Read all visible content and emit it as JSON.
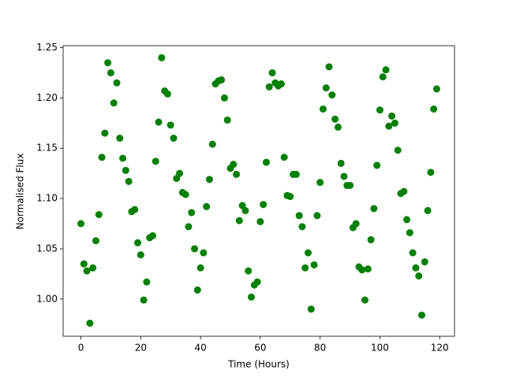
{
  "chart_data": {
    "type": "scatter",
    "x_label": "Time (Hours)",
    "y_label": "Normalised Flux",
    "color": "#008000",
    "x": [
      0,
      1,
      2,
      3,
      4,
      5,
      6,
      7,
      8,
      9,
      10,
      11,
      12,
      13,
      14,
      15,
      16,
      17,
      18,
      19,
      20,
      21,
      22,
      23,
      24,
      25,
      26,
      27,
      28,
      29,
      30,
      31,
      32,
      33,
      34,
      35,
      36,
      37,
      38,
      39,
      40,
      41,
      42,
      43,
      44,
      45,
      46,
      47,
      48,
      49,
      50,
      51,
      52,
      53,
      54,
      55,
      56,
      57,
      58,
      59,
      60,
      61,
      62,
      63,
      64,
      65,
      66,
      67,
      68,
      69,
      70,
      71,
      72,
      73,
      74,
      75,
      76,
      77,
      78,
      79,
      80,
      81,
      82,
      83,
      84,
      85,
      86,
      87,
      88,
      89,
      90,
      91,
      92,
      93,
      94,
      95,
      96,
      97,
      98,
      99,
      100,
      101,
      102,
      103,
      104,
      105,
      106,
      107,
      108,
      109,
      110,
      111,
      112,
      113,
      114,
      115,
      116,
      117,
      118,
      119
    ],
    "values": [
      1.075,
      1.035,
      1.028,
      0.976,
      1.031,
      1.058,
      1.084,
      1.141,
      1.165,
      1.235,
      1.225,
      1.195,
      1.215,
      1.16,
      1.14,
      1.128,
      1.117,
      1.087,
      1.089,
      1.056,
      1.044,
      0.999,
      1.017,
      1.061,
      1.063,
      1.137,
      1.176,
      1.24,
      1.207,
      1.204,
      1.173,
      1.16,
      1.12,
      1.125,
      1.106,
      1.104,
      1.072,
      1.086,
      1.05,
      1.009,
      1.031,
      1.046,
      1.092,
      1.119,
      1.154,
      1.214,
      1.217,
      1.218,
      1.2,
      1.178,
      1.13,
      1.134,
      1.124,
      1.078,
      1.093,
      1.088,
      1.028,
      1.002,
      1.014,
      1.017,
      1.077,
      1.094,
      1.136,
      1.211,
      1.225,
      1.215,
      1.212,
      1.214,
      1.141,
      1.103,
      1.102,
      1.124,
      1.124,
      1.083,
      1.072,
      1.031,
      1.046,
      0.99,
      1.034,
      1.083,
      1.116,
      1.189,
      1.21,
      1.231,
      1.203,
      1.179,
      1.171,
      1.135,
      1.122,
      1.113,
      1.113,
      1.071,
      1.075,
      1.032,
      1.029,
      0.999,
      1.03,
      1.059,
      1.09,
      1.133,
      1.188,
      1.221,
      1.228,
      1.172,
      1.182,
      1.175,
      1.148,
      1.105,
      1.107,
      1.079,
      1.066,
      1.046,
      1.031,
      1.023,
      0.984,
      1.037,
      1.088,
      1.126,
      1.189,
      1.209
    ],
    "xlim": [
      -5.95,
      124.95
    ],
    "xticks": [
      0,
      20,
      40,
      60,
      80,
      100,
      120
    ],
    "ylim": [
      0.963,
      1.252
    ],
    "yticks": [
      {
        "value": 1.0,
        "label": "1.00"
      },
      1.05,
      {
        "value": 1.1,
        "label": "1.10"
      },
      1.15,
      {
        "value": 1.2,
        "label": "1.20"
      },
      1.25
    ],
    "grid": false
  }
}
